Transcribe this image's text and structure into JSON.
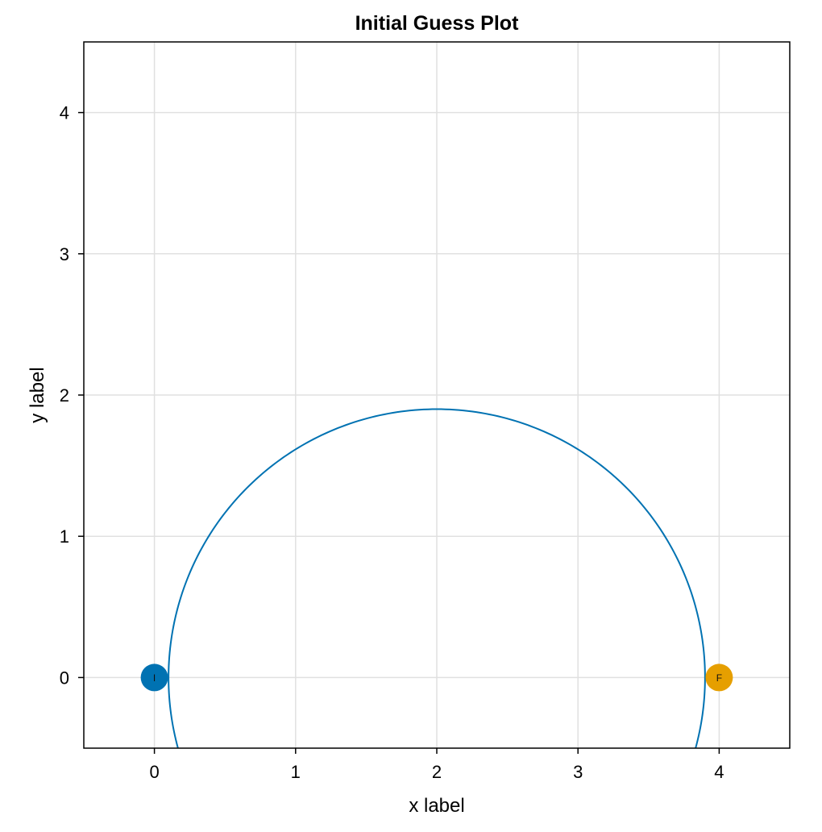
{
  "chart_data": {
    "type": "scatter",
    "title": "Initial Guess Plot",
    "xlabel": "x label",
    "ylabel": "y label",
    "xlim": [
      -0.5,
      4.5
    ],
    "ylim": [
      -0.5,
      4.5
    ],
    "grid": true,
    "xticks": [
      "0",
      "1",
      "2",
      "3",
      "4"
    ],
    "yticks": [
      "0",
      "1",
      "2",
      "3",
      "4"
    ],
    "curve": {
      "kind": "circle-arc",
      "center": [
        2,
        0
      ],
      "radius": 1.9,
      "color": "#0072b2"
    },
    "points": [
      {
        "x": 0,
        "y": 0,
        "label": "I",
        "color": "#0072b2"
      },
      {
        "x": 4,
        "y": 0,
        "label": "F",
        "color": "#e69f00"
      }
    ]
  }
}
